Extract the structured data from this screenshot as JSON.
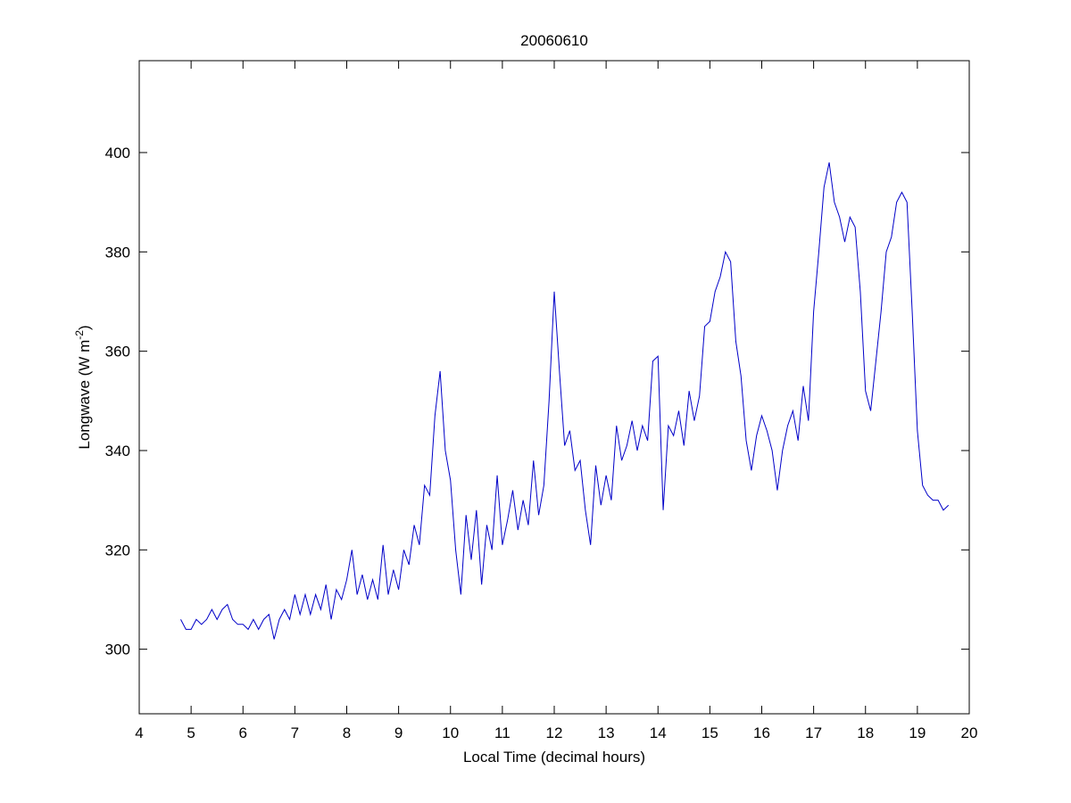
{
  "chart_data": {
    "type": "line",
    "title": "20060610",
    "xlabel": "Local Time (decimal hours)",
    "ylabel": {
      "text": "Longwave (W m",
      "superscript": "-2",
      "close": ")"
    },
    "x": [
      4.8,
      4.9,
      5.0,
      5.1,
      5.2,
      5.3,
      5.4,
      5.5,
      5.6,
      5.7,
      5.8,
      5.9,
      6.0,
      6.1,
      6.2,
      6.3,
      6.4,
      6.5,
      6.6,
      6.7,
      6.8,
      6.9,
      7.0,
      7.1,
      7.2,
      7.3,
      7.4,
      7.5,
      7.6,
      7.7,
      7.8,
      7.9,
      8.0,
      8.1,
      8.2,
      8.3,
      8.4,
      8.5,
      8.6,
      8.7,
      8.8,
      8.9,
      9.0,
      9.1,
      9.2,
      9.3,
      9.4,
      9.5,
      9.6,
      9.7,
      9.8,
      9.9,
      10.0,
      10.1,
      10.2,
      10.3,
      10.4,
      10.5,
      10.6,
      10.7,
      10.8,
      10.9,
      11.0,
      11.1,
      11.2,
      11.3,
      11.4,
      11.5,
      11.6,
      11.7,
      11.8,
      11.9,
      12.0,
      12.1,
      12.2,
      12.3,
      12.4,
      12.5,
      12.6,
      12.7,
      12.8,
      12.9,
      13.0,
      13.1,
      13.2,
      13.3,
      13.4,
      13.5,
      13.6,
      13.7,
      13.8,
      13.9,
      14.0,
      14.1,
      14.2,
      14.3,
      14.4,
      14.5,
      14.6,
      14.7,
      14.8,
      14.9,
      15.0,
      15.1,
      15.2,
      15.3,
      15.4,
      15.5,
      15.6,
      15.7,
      15.8,
      15.9,
      16.0,
      16.1,
      16.2,
      16.3,
      16.4,
      16.5,
      16.6,
      16.7,
      16.8,
      16.9,
      17.0,
      17.1,
      17.2,
      17.3,
      17.4,
      17.5,
      17.6,
      17.7,
      17.8,
      17.9,
      18.0,
      18.1,
      18.2,
      18.3,
      18.4,
      18.5,
      18.6,
      18.7,
      18.8,
      18.9,
      19.0,
      19.1,
      19.2,
      19.3,
      19.4,
      19.5,
      19.6
    ],
    "series": [
      {
        "color": "#0000c8",
        "values": [
          306,
          304,
          304,
          306,
          305,
          306,
          308,
          306,
          308,
          309,
          306,
          305,
          305,
          304,
          306,
          304,
          306,
          307,
          302,
          306,
          308,
          306,
          311,
          307,
          311,
          307,
          311,
          308,
          313,
          306,
          312,
          310,
          314,
          320,
          311,
          315,
          310,
          314,
          310,
          321,
          311,
          316,
          312,
          320,
          317,
          325,
          321,
          333,
          331,
          347,
          356,
          340,
          334,
          320,
          311,
          327,
          318,
          328,
          313,
          325,
          320,
          335,
          321,
          326,
          332,
          324,
          330,
          325,
          338,
          327,
          333,
          350,
          372,
          356,
          341,
          344,
          336,
          338,
          328,
          321,
          337,
          329,
          335,
          330,
          345,
          338,
          341,
          346,
          340,
          345,
          342,
          358,
          359,
          328,
          345,
          343,
          348,
          341,
          352,
          346,
          351,
          365,
          366,
          372,
          375,
          380,
          378,
          362,
          355,
          342,
          336,
          343,
          347,
          344,
          340,
          332,
          340,
          345,
          348,
          342,
          353,
          346,
          368,
          380,
          393,
          398,
          390,
          387,
          382,
          387,
          385,
          372,
          352,
          348,
          358,
          368,
          380,
          383,
          390,
          392,
          390,
          368,
          344,
          333,
          331,
          330,
          330,
          328,
          329
        ]
      }
    ],
    "xlim": [
      4,
      20
    ],
    "xticks": [
      4,
      5,
      6,
      7,
      8,
      9,
      10,
      11,
      12,
      13,
      14,
      15,
      16,
      17,
      18,
      19,
      20
    ],
    "ylim": [
      287,
      418.5
    ],
    "yticks": [
      300,
      320,
      340,
      360,
      380,
      400
    ],
    "grid": false
  }
}
